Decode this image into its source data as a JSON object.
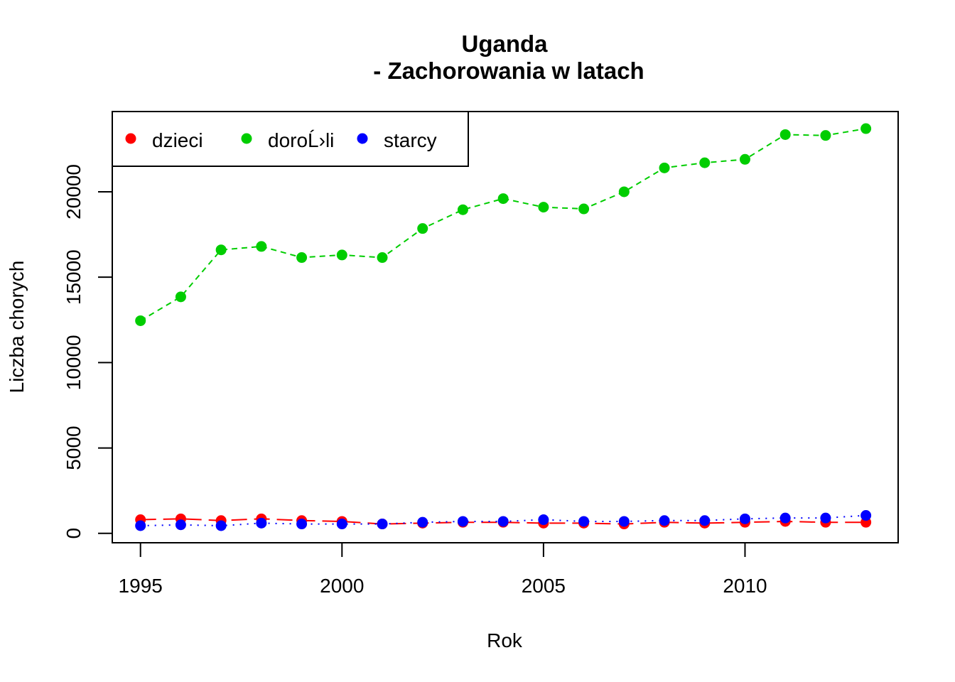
{
  "chart_data": {
    "type": "line",
    "title": "Uganda",
    "subtitle": "- Zachorowania w latach",
    "xlabel": "Rok",
    "ylabel": "Liczba chorych",
    "xlim": [
      1994.3,
      2013.8
    ],
    "ylim": [
      -550,
      24700
    ],
    "xticks": [
      1995,
      2000,
      2005,
      2010
    ],
    "yticks": [
      0,
      5000,
      10000,
      15000,
      20000
    ],
    "legend_position": "top-left",
    "grid": false,
    "x": [
      1995,
      1996,
      1997,
      1998,
      1999,
      2000,
      2001,
      2002,
      2003,
      2004,
      2005,
      2006,
      2007,
      2008,
      2009,
      2010,
      2011,
      2012,
      2013
    ],
    "series": [
      {
        "name": "dzieci",
        "color": "#ff0000",
        "line_style": "longdash",
        "values": [
          800,
          850,
          750,
          850,
          750,
          700,
          550,
          600,
          650,
          650,
          600,
          600,
          550,
          650,
          600,
          650,
          700,
          650,
          650
        ]
      },
      {
        "name": "doroĹ›li",
        "color": "#00cd00",
        "line_style": "dashed",
        "values": [
          12450,
          13850,
          16600,
          16800,
          16150,
          16300,
          16150,
          17850,
          18950,
          19600,
          19100,
          19000,
          20000,
          21400,
          21700,
          21900,
          23350,
          23300,
          23700
        ]
      },
      {
        "name": "starcy",
        "color": "#0000ff",
        "line_style": "dotted",
        "values": [
          450,
          500,
          450,
          600,
          550,
          550,
          550,
          650,
          700,
          700,
          800,
          700,
          700,
          750,
          750,
          850,
          900,
          900,
          1050
        ]
      }
    ]
  }
}
